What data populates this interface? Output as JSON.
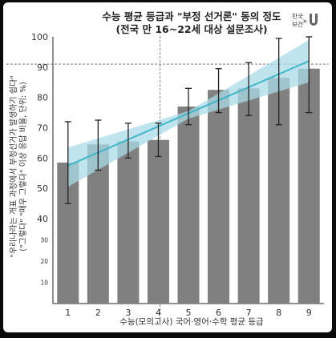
{
  "chart_data": {
    "type": "bar",
    "title": "수능 평균 등급과 \"부정 선거론\" 동의 정도",
    "subtitle": "(전국 만 16~22세 대상 설문조사)",
    "xlabel": "수능(모의고사) 국어·영어·수학 평균 등급",
    "ylabel": "\"우리나라는 개표 과정에서 부정선거가 발생하기 쉽다\"",
    "ylabel2": "(\"그렇다\" \"매우 그렇다\" 이상 응답 비율, 단위: %)",
    "categories": [
      "1",
      "2",
      "3",
      "4",
      "5",
      "6",
      "7",
      "8",
      "9"
    ],
    "values": [
      58.5,
      64.5,
      65.5,
      66,
      77,
      82.5,
      83,
      86.5,
      89.5
    ],
    "error_low": [
      45,
      56,
      60,
      60.5,
      71,
      75,
      74,
      71,
      75
    ],
    "error_high": [
      72,
      72.5,
      71.5,
      71.5,
      83,
      89.5,
      91.5,
      99.5,
      100
    ],
    "trend": [
      57.5,
      92
    ],
    "reference_line": 91,
    "yticks_main": [
      40,
      50,
      60,
      70,
      80,
      90,
      100
    ],
    "yticks_lower": [
      10,
      20,
      30
    ],
    "ylim": [
      0,
      100
    ],
    "grid": false,
    "logo_text": [
      "한국",
      "보건",
      "×"
    ]
  },
  "colors": {
    "bar": "#808080",
    "trend": "#3fb5c8",
    "band": "#aadbe7",
    "error": "#222222"
  }
}
